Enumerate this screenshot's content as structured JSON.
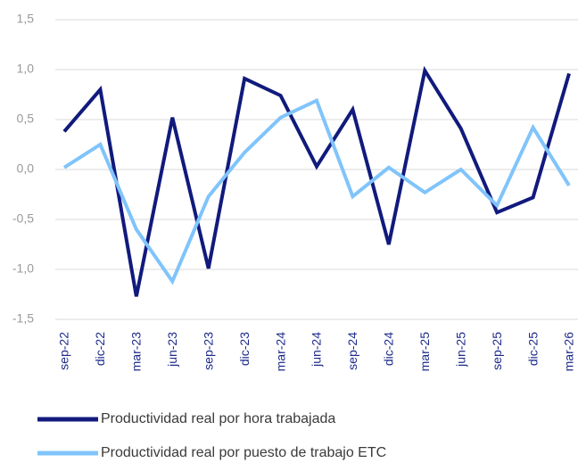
{
  "chart_data": {
    "type": "line",
    "categories": [
      "sep-22",
      "dic-22",
      "mar-23",
      "jun-23",
      "sep-23",
      "dic-23",
      "mar-24",
      "jun-24",
      "sep-24",
      "dic-24",
      "mar-25",
      "jun-25",
      "sep-25",
      "dic-25",
      "mar-26"
    ],
    "series": [
      {
        "name": "Productividad real por hora trabajada",
        "color": "#111a7c",
        "values": [
          0.38,
          0.8,
          -1.27,
          0.52,
          -0.99,
          0.91,
          0.74,
          0.03,
          0.6,
          -0.75,
          0.99,
          0.41,
          -0.43,
          -0.28,
          0.96
        ]
      },
      {
        "name": "Productividad real por puesto de trabajo ETC",
        "color": "#80c4fb",
        "values": [
          0.02,
          0.25,
          -0.6,
          -1.12,
          -0.27,
          0.17,
          0.52,
          0.69,
          -0.27,
          0.02,
          -0.23,
          0.0,
          -0.36,
          0.42,
          -0.16
        ]
      }
    ],
    "ylim": [
      -1.5,
      1.5
    ],
    "yticks": [
      {
        "value": -1.5,
        "label": "-1,5"
      },
      {
        "value": -1.0,
        "label": "-1,0"
      },
      {
        "value": -0.5,
        "label": "-0,5"
      },
      {
        "value": 0,
        "label": "0,0"
      },
      {
        "value": 0.5,
        "label": "0,5"
      },
      {
        "value": 1.0,
        "label": "1,0"
      },
      {
        "value": 1.5,
        "label": "1,5"
      }
    ],
    "grid": true,
    "legend": "bottom"
  }
}
